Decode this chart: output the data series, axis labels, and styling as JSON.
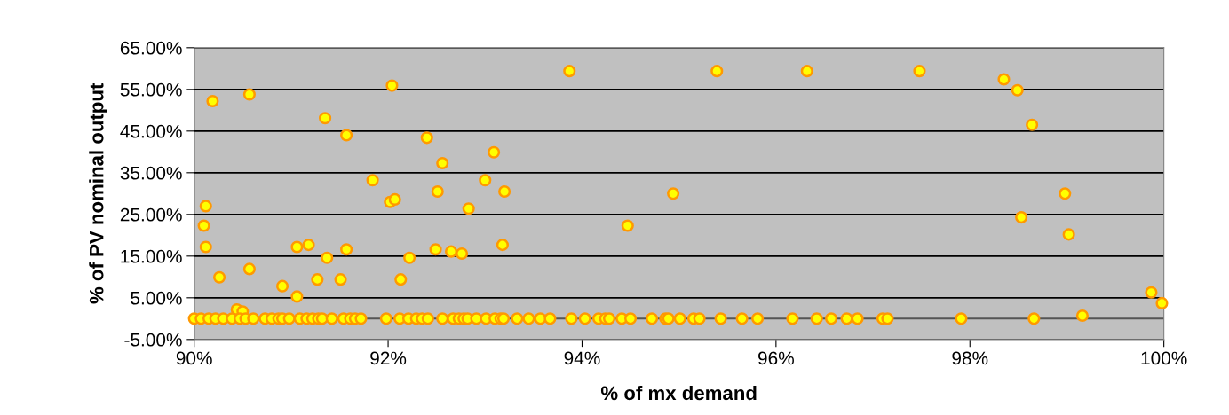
{
  "chart_data": {
    "type": "scatter",
    "xlabel": "% of mx demand",
    "ylabel": "% of PV nominal output",
    "xlim": [
      90,
      100
    ],
    "ylim": [
      -5,
      65
    ],
    "xticks": [
      {
        "value": 90,
        "label": "90%"
      },
      {
        "value": 92,
        "label": "92%"
      },
      {
        "value": 94,
        "label": "94%"
      },
      {
        "value": 96,
        "label": "96%"
      },
      {
        "value": 98,
        "label": "98%"
      },
      {
        "value": 100,
        "label": "100%"
      }
    ],
    "yticks": [
      {
        "value": -5,
        "label": "-5.00%"
      },
      {
        "value": 5,
        "label": "5.00%"
      },
      {
        "value": 15,
        "label": "15.00%"
      },
      {
        "value": 25,
        "label": "25.00%"
      },
      {
        "value": 35,
        "label": "35.00%"
      },
      {
        "value": 45,
        "label": "45.00%"
      },
      {
        "value": 55,
        "label": "55.00%"
      },
      {
        "value": 65,
        "label": "65.00%"
      }
    ],
    "grid": "y",
    "marker": "circle",
    "legend": false,
    "series": [
      {
        "color": "#ffff00",
        "x": [
          90.19,
          90.57,
          91.35,
          91.57,
          92.04,
          92.4,
          92.56,
          93.09,
          91.84,
          92.02,
          92.07,
          92.51,
          93.0,
          93.2,
          92.83,
          90.12,
          90.1,
          90.12,
          91.06,
          91.18,
          91.57,
          92.49,
          92.65,
          92.76,
          93.18,
          91.37,
          92.22,
          90.26,
          90.57,
          91.27,
          91.51,
          92.13,
          90.91,
          91.06,
          90.44,
          90.5,
          93.87,
          95.39,
          96.32,
          94.94,
          94.47,
          97.48,
          98.35,
          98.49,
          98.64,
          98.98,
          98.53,
          99.02,
          99.87,
          99.98,
          99.16,
          90.0,
          90.07,
          90.15,
          90.22,
          90.3,
          90.39,
          90.47,
          90.53,
          90.61,
          90.73,
          90.8,
          90.87,
          90.91,
          90.98,
          91.09,
          91.16,
          91.22,
          91.28,
          91.32,
          91.42,
          91.54,
          91.61,
          91.66,
          91.72,
          91.98,
          92.12,
          92.21,
          92.29,
          92.35,
          92.41,
          92.56,
          92.67,
          92.73,
          92.78,
          92.82,
          92.91,
          93.01,
          93.1,
          93.16,
          93.19,
          93.33,
          93.45,
          93.57,
          93.67,
          93.89,
          94.03,
          94.17,
          94.24,
          94.28,
          94.41,
          94.5,
          94.72,
          94.86,
          94.89,
          95.01,
          95.15,
          95.21,
          95.43,
          95.65,
          95.81,
          96.17,
          96.42,
          96.57,
          96.73,
          96.84,
          97.1,
          97.15,
          97.91,
          98.66
        ],
        "values": [
          52.2,
          53.8,
          48.1,
          44.0,
          55.9,
          43.4,
          37.3,
          39.9,
          33.2,
          28.0,
          28.6,
          30.5,
          33.2,
          30.5,
          26.4,
          27.0,
          22.3,
          17.2,
          17.2,
          17.7,
          16.6,
          16.6,
          16.1,
          15.6,
          17.7,
          14.6,
          14.6,
          9.9,
          11.9,
          9.4,
          9.4,
          9.4,
          7.8,
          5.3,
          2.2,
          1.7,
          59.4,
          59.4,
          59.4,
          30.0,
          22.3,
          59.4,
          57.4,
          54.8,
          46.5,
          30.0,
          24.3,
          20.2,
          6.3,
          3.7,
          0.7,
          0,
          0,
          0,
          0,
          0,
          0,
          0,
          0,
          0,
          0,
          0,
          0,
          0,
          0,
          0,
          0,
          0,
          0,
          0,
          0,
          0,
          0,
          0,
          0,
          0,
          0,
          0,
          0,
          0,
          0,
          0,
          0,
          0,
          0,
          0,
          0,
          0,
          0,
          0,
          0,
          0,
          0,
          0,
          0,
          0,
          0,
          0,
          0,
          0,
          0,
          0,
          0,
          0,
          0,
          0,
          0,
          0,
          0,
          0,
          0,
          0,
          0,
          0,
          0,
          0,
          0,
          0,
          0,
          0
        ]
      }
    ]
  }
}
